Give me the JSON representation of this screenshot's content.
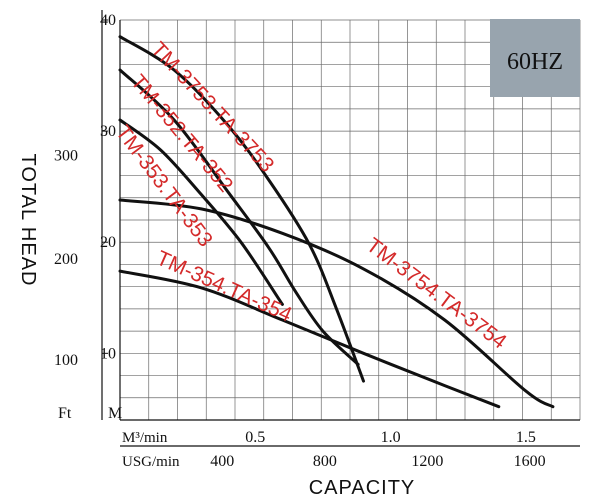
{
  "chart_data": {
    "type": "line",
    "title": "",
    "badge": "60HZ",
    "xlabel": "CAPACITY",
    "ylabel": "TOTAL HEAD",
    "x_unit_primary": "M³/min",
    "x_unit_secondary": "USG/min",
    "y_unit_primary": "M",
    "y_unit_secondary": "Ft",
    "xlim": [
      0,
      1.7
    ],
    "ylim": [
      4,
      40
    ],
    "x_ticks_primary": [
      {
        "value": 0.5,
        "label": "0.5"
      },
      {
        "value": 1.0,
        "label": "1.0"
      },
      {
        "value": 1.5,
        "label": "1.5"
      }
    ],
    "x_ticks_secondary": [
      {
        "value": 0.378,
        "label": "400"
      },
      {
        "value": 0.757,
        "label": "800"
      },
      {
        "value": 1.136,
        "label": "1200"
      },
      {
        "value": 1.514,
        "label": "1600"
      }
    ],
    "y_ticks_primary": [
      {
        "value": 10,
        "label": "10"
      },
      {
        "value": 20,
        "label": "20"
      },
      {
        "value": 30,
        "label": "30"
      },
      {
        "value": 40,
        "label": "40"
      }
    ],
    "y_ticks_secondary": [
      {
        "value": 9.39,
        "label": "100"
      },
      {
        "value": 18.5,
        "label": "200"
      },
      {
        "value": 27.8,
        "label": "300"
      }
    ],
    "grid": true,
    "colors": {
      "curves": "#111111",
      "labels": "#d42a2a",
      "badge": "#98a4ae",
      "grid": "#6a6a6a"
    },
    "series": [
      {
        "name": "TM-3753.TA-3753",
        "x": [
          0,
          0.2,
          0.4,
          0.55,
          0.7,
          0.8,
          0.9
        ],
        "y": [
          38.5,
          35.5,
          30.5,
          25.6,
          19.8,
          14.0,
          7.5
        ]
      },
      {
        "name": "TM-352.TA-352",
        "x": [
          0,
          0.2,
          0.4,
          0.55,
          0.65,
          0.75,
          0.88
        ],
        "y": [
          35.5,
          31.0,
          24.5,
          19.5,
          15.5,
          12.0,
          9.0
        ]
      },
      {
        "name": "TM-353.TA-353",
        "x": [
          0,
          0.15,
          0.3,
          0.45,
          0.6
        ],
        "y": [
          31.0,
          28.3,
          24.3,
          19.9,
          14.4
        ]
      },
      {
        "name": "TM-3754.TA-3754",
        "x": [
          0,
          0.3,
          0.6,
          0.9,
          1.2,
          1.5,
          1.6
        ],
        "y": [
          23.8,
          23.0,
          20.8,
          17.6,
          13.0,
          6.6,
          5.2
        ]
      },
      {
        "name": "TM-354.TA-354",
        "x": [
          0,
          0.3,
          0.6,
          0.9,
          1.2,
          1.4
        ],
        "y": [
          17.4,
          15.9,
          13.0,
          10.0,
          7.1,
          5.2
        ]
      }
    ]
  }
}
